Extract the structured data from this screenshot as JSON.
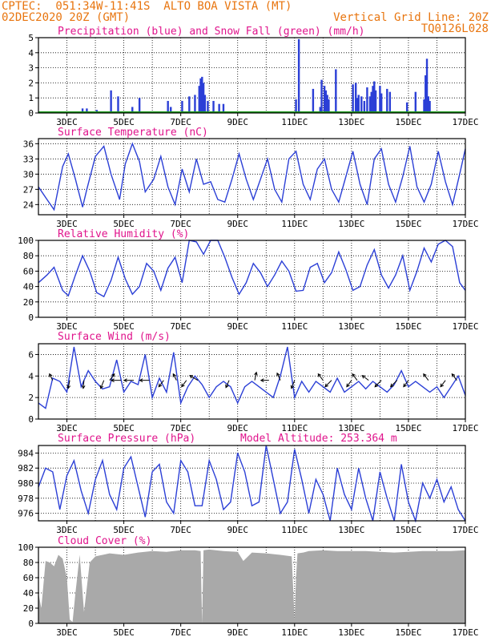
{
  "header": {
    "line1_left": "CPTEC:  051:34W-11:41S  ALTO BOA VISTA (MT)",
    "line2_left": "02DEC2020 20Z (GMT)",
    "line2_right": "Vertical Grid Line: 20Z",
    "line3_right": "TQ0126L028"
  },
  "colors": {
    "header": "#e8750f",
    "title": "#e0148c",
    "series": "#2b3fd6",
    "snow": "#1a9a1a",
    "cloud": "#a9a9a9",
    "grid": "#000000"
  },
  "chart_data": [
    {
      "id": "precip",
      "type": "bar",
      "title": "Precipitation (blue) and Snow Fall (green) (mm/h)",
      "ylim": [
        0,
        5
      ],
      "yticks": [
        0,
        1,
        2,
        3,
        4,
        5
      ],
      "xticks": [
        "3DEC",
        "5DEC",
        "7DEC",
        "9DEC",
        "11DEC",
        "13DEC",
        "15DEC",
        "17DEC"
      ],
      "bars": [
        {
          "day": 3.55,
          "v": 0.3
        },
        {
          "day": 3.7,
          "v": 0.3
        },
        {
          "day": 4.05,
          "v": 0.2
        },
        {
          "day": 4.55,
          "v": 1.5
        },
        {
          "day": 4.8,
          "v": 1.1
        },
        {
          "day": 5.3,
          "v": 0.4
        },
        {
          "day": 5.55,
          "v": 1.0
        },
        {
          "day": 6.55,
          "v": 0.8
        },
        {
          "day": 6.65,
          "v": 0.4
        },
        {
          "day": 7.05,
          "v": 0.8
        },
        {
          "day": 7.3,
          "v": 1.1
        },
        {
          "day": 7.5,
          "v": 1.2
        },
        {
          "day": 7.65,
          "v": 1.8
        },
        {
          "day": 7.7,
          "v": 2.3
        },
        {
          "day": 7.75,
          "v": 2.4
        },
        {
          "day": 7.8,
          "v": 2.0
        },
        {
          "day": 7.85,
          "v": 1.2
        },
        {
          "day": 7.95,
          "v": 0.8
        },
        {
          "day": 8.15,
          "v": 0.8
        },
        {
          "day": 8.35,
          "v": 0.6
        },
        {
          "day": 8.5,
          "v": 0.6
        },
        {
          "day": 9.2,
          "v": 0.1
        },
        {
          "day": 11.05,
          "v": 0.9
        },
        {
          "day": 11.15,
          "v": 4.9
        },
        {
          "day": 11.65,
          "v": 1.6
        },
        {
          "day": 11.9,
          "v": 0.4
        },
        {
          "day": 11.95,
          "v": 2.2
        },
        {
          "day": 12.05,
          "v": 1.8
        },
        {
          "day": 12.1,
          "v": 1.5
        },
        {
          "day": 12.15,
          "v": 1.2
        },
        {
          "day": 12.2,
          "v": 0.9
        },
        {
          "day": 12.45,
          "v": 2.9
        },
        {
          "day": 13.05,
          "v": 1.9
        },
        {
          "day": 13.15,
          "v": 2.0
        },
        {
          "day": 13.2,
          "v": 1.0
        },
        {
          "day": 13.25,
          "v": 1.2
        },
        {
          "day": 13.35,
          "v": 1.1
        },
        {
          "day": 13.45,
          "v": 0.8
        },
        {
          "day": 13.55,
          "v": 1.7
        },
        {
          "day": 13.65,
          "v": 1.1
        },
        {
          "day": 13.7,
          "v": 1.4
        },
        {
          "day": 13.75,
          "v": 1.8
        },
        {
          "day": 13.8,
          "v": 2.1
        },
        {
          "day": 13.85,
          "v": 1.5
        },
        {
          "day": 14.0,
          "v": 1.8
        },
        {
          "day": 14.05,
          "v": 1.3
        },
        {
          "day": 14.25,
          "v": 1.6
        },
        {
          "day": 14.35,
          "v": 1.4
        },
        {
          "day": 14.95,
          "v": 0.7
        },
        {
          "day": 15.25,
          "v": 1.4
        },
        {
          "day": 15.55,
          "v": 0.9
        },
        {
          "day": 15.6,
          "v": 2.5
        },
        {
          "day": 15.65,
          "v": 3.6
        },
        {
          "day": 15.7,
          "v": 1.1
        },
        {
          "day": 15.75,
          "v": 0.8
        }
      ]
    },
    {
      "id": "temp",
      "type": "line",
      "title": "Surface Temperature (nC)",
      "ylim": [
        22,
        37
      ],
      "yticks": [
        24,
        27,
        30,
        33,
        36
      ],
      "xticks": [
        "3DEC",
        "5DEC",
        "7DEC",
        "9DEC",
        "11DEC",
        "13DEC",
        "15DEC",
        "17DEC"
      ],
      "x": [
        2.0,
        2.3,
        2.55,
        2.85,
        3.05,
        3.3,
        3.55,
        3.7,
        4.0,
        4.3,
        4.55,
        4.85,
        5.05,
        5.3,
        5.55,
        5.75,
        6.05,
        6.3,
        6.55,
        6.8,
        7.05,
        7.3,
        7.55,
        7.8,
        8.05,
        8.3,
        8.55,
        8.8,
        9.05,
        9.3,
        9.55,
        9.8,
        10.05,
        10.3,
        10.55,
        10.8,
        11.05,
        11.3,
        11.55,
        11.8,
        12.05,
        12.3,
        12.55,
        12.8,
        13.05,
        13.3,
        13.55,
        13.8,
        14.05,
        14.3,
        14.55,
        14.8,
        15.05,
        15.3,
        15.55,
        15.8,
        16.05,
        16.3,
        16.55,
        16.8,
        17.0
      ],
      "y": [
        27.5,
        25.0,
        23.0,
        31.5,
        34.0,
        29.0,
        23.5,
        27.0,
        33.5,
        35.5,
        30.0,
        25.0,
        32.0,
        36.0,
        32.5,
        26.5,
        29.0,
        33.5,
        27.5,
        24.0,
        31.0,
        26.5,
        33.0,
        28.0,
        28.5,
        25.0,
        24.5,
        29.0,
        34.0,
        29.0,
        25.0,
        29.0,
        33.0,
        27.0,
        24.5,
        33.0,
        34.5,
        28.0,
        25.0,
        31.0,
        33.0,
        27.0,
        24.5,
        29.5,
        34.5,
        28.0,
        24.0,
        33.0,
        35.0,
        28.0,
        24.5,
        29.5,
        35.5,
        27.5,
        24.5,
        28.0,
        34.5,
        28.5,
        24.0,
        30.0,
        35.0
      ]
    },
    {
      "id": "rh",
      "type": "line",
      "title": "Relative Humidity (%)",
      "ylim": [
        0,
        100
      ],
      "yticks": [
        0,
        20,
        40,
        60,
        80,
        100
      ],
      "xticks": [
        "3DEC",
        "5DEC",
        "7DEC",
        "9DEC",
        "11DEC",
        "13DEC",
        "15DEC",
        "17DEC"
      ],
      "x": [
        2.0,
        2.3,
        2.55,
        2.85,
        3.05,
        3.3,
        3.55,
        3.8,
        4.05,
        4.3,
        4.55,
        4.8,
        5.05,
        5.3,
        5.55,
        5.8,
        6.05,
        6.3,
        6.55,
        6.8,
        7.05,
        7.3,
        7.55,
        7.8,
        8.05,
        8.3,
        8.55,
        8.8,
        9.05,
        9.3,
        9.55,
        9.8,
        10.05,
        10.3,
        10.55,
        10.8,
        11.05,
        11.3,
        11.55,
        11.8,
        12.05,
        12.3,
        12.55,
        12.8,
        13.05,
        13.3,
        13.55,
        13.8,
        14.05,
        14.3,
        14.55,
        14.8,
        15.05,
        15.3,
        15.55,
        15.8,
        16.05,
        16.3,
        16.55,
        16.8,
        17.0
      ],
      "y": [
        45,
        55,
        65,
        35,
        28,
        55,
        80,
        60,
        32,
        27,
        48,
        78,
        50,
        30,
        40,
        70,
        60,
        35,
        64,
        78,
        45,
        100,
        98,
        82,
        100,
        100,
        78,
        52,
        30,
        45,
        70,
        58,
        40,
        55,
        73,
        60,
        34,
        35,
        65,
        70,
        45,
        58,
        85,
        62,
        35,
        40,
        68,
        88,
        55,
        38,
        55,
        80,
        35,
        60,
        90,
        72,
        95,
        100,
        92,
        45,
        35
      ]
    },
    {
      "id": "wind",
      "type": "line",
      "title": "Surface Wind (m/s)",
      "ylim": [
        0,
        7
      ],
      "yticks": [
        0,
        2,
        4,
        6
      ],
      "xticks": [
        "3DEC",
        "5DEC",
        "7DEC",
        "9DEC",
        "11DEC",
        "13DEC",
        "15DEC",
        "17DEC"
      ],
      "x": [
        2.0,
        2.25,
        2.5,
        2.75,
        3.0,
        3.25,
        3.5,
        3.75,
        4.0,
        4.25,
        4.5,
        4.75,
        5.0,
        5.25,
        5.5,
        5.75,
        6.0,
        6.25,
        6.5,
        6.75,
        7.0,
        7.25,
        7.5,
        7.75,
        8.0,
        8.25,
        8.5,
        8.75,
        9.0,
        9.25,
        9.5,
        9.75,
        10.0,
        10.25,
        10.5,
        10.75,
        11.0,
        11.25,
        11.5,
        11.75,
        12.0,
        12.25,
        12.5,
        12.75,
        13.0,
        13.25,
        13.5,
        13.75,
        14.0,
        14.25,
        14.5,
        14.75,
        15.0,
        15.25,
        15.5,
        15.75,
        16.0,
        16.25,
        16.5,
        16.75,
        17.0
      ],
      "y": [
        1.5,
        1.0,
        3.8,
        3.5,
        2.5,
        6.7,
        3.0,
        4.5,
        3.5,
        2.8,
        3.0,
        5.5,
        2.5,
        3.5,
        3.2,
        6.0,
        2.0,
        3.8,
        2.5,
        6.2,
        1.5,
        3.0,
        4.0,
        3.2,
        2.0,
        3.0,
        3.5,
        3.0,
        1.5,
        3.0,
        3.5,
        3.0,
        2.5,
        2.0,
        4.0,
        6.7,
        2.0,
        3.5,
        2.5,
        3.5,
        3.0,
        2.5,
        3.8,
        2.5,
        3.0,
        3.5,
        2.8,
        3.5,
        3.0,
        2.5,
        3.2,
        4.5,
        3.0,
        3.5,
        3.0,
        2.5,
        3.0,
        2.0,
        3.0,
        4.0,
        2.2
      ],
      "arrows": [
        {
          "day": 2.5,
          "dx": -4,
          "dy": -8
        },
        {
          "day": 3.1,
          "dx": -2,
          "dy": 10
        },
        {
          "day": 3.6,
          "dx": -1,
          "dy": 10
        },
        {
          "day": 4.3,
          "dx": -4,
          "dy": 10
        },
        {
          "day": 4.5,
          "dx": 6,
          "dy": -8
        },
        {
          "day": 4.9,
          "dx": -12,
          "dy": 0
        },
        {
          "day": 5.35,
          "dx": -12,
          "dy": 0
        },
        {
          "day": 5.9,
          "dx": -12,
          "dy": 0
        },
        {
          "day": 6.4,
          "dx": -6,
          "dy": 8
        },
        {
          "day": 6.85,
          "dx": -4,
          "dy": -8
        },
        {
          "day": 7.2,
          "dx": -6,
          "dy": 8
        },
        {
          "day": 7.6,
          "dx": -10,
          "dy": -6
        },
        {
          "day": 8.7,
          "dx": -4,
          "dy": 9
        },
        {
          "day": 9.6,
          "dx": 2,
          "dy": -10
        },
        {
          "day": 10.1,
          "dx": -10,
          "dy": 0
        },
        {
          "day": 10.5,
          "dx": -4,
          "dy": -9
        },
        {
          "day": 11.0,
          "dx": -4,
          "dy": 10
        },
        {
          "day": 12.0,
          "dx": -6,
          "dy": -8
        },
        {
          "day": 12.3,
          "dx": -8,
          "dy": 8
        },
        {
          "day": 13.0,
          "dx": -6,
          "dy": 8
        },
        {
          "day": 13.2,
          "dx": -6,
          "dy": -8
        },
        {
          "day": 13.6,
          "dx": -8,
          "dy": -6
        },
        {
          "day": 14.05,
          "dx": -8,
          "dy": 8
        },
        {
          "day": 14.6,
          "dx": -8,
          "dy": 8
        },
        {
          "day": 15.0,
          "dx": -6,
          "dy": 8
        },
        {
          "day": 15.7,
          "dx": -6,
          "dy": -8
        },
        {
          "day": 16.3,
          "dx": -6,
          "dy": 8
        },
        {
          "day": 16.7,
          "dx": -6,
          "dy": -8
        }
      ]
    },
    {
      "id": "pres",
      "type": "line",
      "title": "Surface Pressure (hPa)",
      "subtitle": "Model Altitude: 253.364 m",
      "ylim": [
        975,
        985
      ],
      "yticks": [
        976,
        978,
        980,
        982,
        984
      ],
      "xticks": [
        "3DEC",
        "5DEC",
        "7DEC",
        "9DEC",
        "11DEC",
        "13DEC",
        "15DEC",
        "17DEC"
      ],
      "x": [
        2.0,
        2.25,
        2.5,
        2.75,
        3.0,
        3.25,
        3.5,
        3.75,
        4.0,
        4.25,
        4.5,
        4.75,
        5.0,
        5.25,
        5.5,
        5.75,
        6.0,
        6.25,
        6.5,
        6.75,
        7.0,
        7.25,
        7.5,
        7.75,
        8.0,
        8.25,
        8.5,
        8.75,
        9.0,
        9.25,
        9.5,
        9.75,
        10.0,
        10.25,
        10.5,
        10.75,
        11.0,
        11.25,
        11.5,
        11.75,
        12.0,
        12.25,
        12.5,
        12.75,
        13.0,
        13.25,
        13.5,
        13.75,
        14.0,
        14.25,
        14.5,
        14.75,
        15.0,
        15.25,
        15.5,
        15.75,
        16.0,
        16.25,
        16.5,
        16.75,
        17.0
      ],
      "y": [
        979.5,
        982.0,
        981.5,
        976.5,
        981.0,
        983.0,
        979.0,
        976.0,
        980.5,
        983.0,
        978.5,
        976.5,
        982.0,
        983.5,
        979.5,
        975.5,
        981.5,
        982.5,
        977.5,
        976.0,
        983.0,
        981.5,
        977.0,
        977.0,
        983.0,
        980.5,
        976.5,
        977.5,
        984.0,
        981.5,
        977.0,
        977.5,
        985.0,
        980.5,
        976.0,
        977.5,
        984.5,
        980.5,
        976.0,
        980.5,
        978.5,
        975.0,
        982.0,
        978.5,
        976.5,
        982.0,
        978.0,
        975.0,
        981.5,
        978.0,
        975.0,
        982.5,
        977.5,
        975.0,
        980.0,
        978.0,
        980.5,
        977.5,
        979.5,
        976.5,
        975.0
      ]
    },
    {
      "id": "cloud",
      "type": "area",
      "title": "Cloud Cover (%)",
      "ylim": [
        0,
        100
      ],
      "yticks": [
        0,
        20,
        40,
        60,
        80,
        100
      ],
      "xticks": [
        "3DEC",
        "5DEC",
        "7DEC",
        "9DEC",
        "11DEC",
        "13DEC",
        "15DEC",
        "17DEC"
      ],
      "x": [
        2.0,
        2.1,
        2.25,
        2.4,
        2.55,
        2.7,
        2.85,
        3.0,
        3.1,
        3.2,
        3.3,
        3.45,
        3.6,
        3.8,
        4.0,
        4.5,
        5.0,
        5.5,
        6.0,
        6.5,
        7.0,
        7.5,
        7.7,
        7.75,
        7.8,
        8.0,
        8.5,
        9.0,
        9.2,
        9.5,
        10.0,
        10.5,
        10.9,
        11.0,
        11.05,
        11.1,
        11.3,
        11.5,
        12.0,
        12.5,
        13.0,
        13.5,
        14.0,
        14.5,
        15.0,
        15.5,
        16.0,
        16.5,
        17.0
      ],
      "y": [
        40,
        20,
        82,
        80,
        75,
        90,
        85,
        60,
        5,
        2,
        40,
        90,
        15,
        80,
        88,
        92,
        90,
        93,
        95,
        94,
        96,
        96,
        95,
        0,
        96,
        97,
        95,
        94,
        82,
        93,
        92,
        90,
        88,
        5,
        60,
        92,
        93,
        95,
        96,
        95,
        95,
        95,
        94,
        93,
        94,
        95,
        95,
        95,
        96
      ]
    }
  ]
}
